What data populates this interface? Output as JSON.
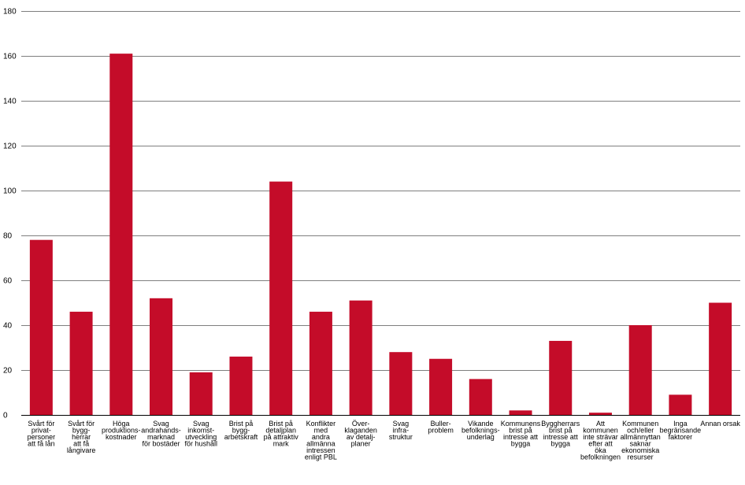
{
  "chart_data": {
    "type": "bar",
    "categories": [
      [
        "Svårt för",
        "privat-",
        "personer",
        "att få lån"
      ],
      [
        "Svårt för",
        "bygg-",
        "herrar",
        "att få",
        "långivare"
      ],
      [
        "Höga",
        "produktions-",
        "kostnader"
      ],
      [
        "Svag",
        "andrahands-",
        "marknad",
        "för bostäder"
      ],
      [
        "Svag",
        "inkomst-",
        "utveckling",
        "för hushåll"
      ],
      [
        "Brist på",
        "bygg-",
        "arbetskraft"
      ],
      [
        "Brist på",
        "detaljplan",
        "på attraktiv",
        "mark"
      ],
      [
        "Konflikter",
        "med",
        "andra",
        "allmänna",
        "intressen",
        "enligt PBL"
      ],
      [
        "Över-",
        "klaganden",
        "av detalj-",
        "planer"
      ],
      [
        "Svag",
        "infra-",
        "struktur"
      ],
      [
        "Buller-",
        "problem"
      ],
      [
        "Vikande",
        "befolknings-",
        "underlag"
      ],
      [
        "Kommunens",
        "brist på",
        "intresse att",
        "bygga"
      ],
      [
        "Byggherrars",
        "brist på",
        "intresse att",
        "bygga"
      ],
      [
        "Att",
        "kommunen",
        "inte strävar",
        "efter att",
        "öka",
        "befolkningen"
      ],
      [
        "Kommunen",
        "och/eller",
        "allmännyttan",
        "saknar",
        "ekonomiska",
        "resurser"
      ],
      [
        "Inga",
        "begränsande",
        "faktorer"
      ],
      [
        "Annan orsak"
      ]
    ],
    "values": [
      78,
      46,
      161,
      52,
      19,
      26,
      104,
      46,
      51,
      28,
      25,
      16,
      2,
      33,
      1,
      40,
      9,
      50
    ],
    "ylim": [
      0,
      180
    ],
    "yticks": [
      "0",
      "20",
      "40",
      "60",
      "80",
      "100",
      "120",
      "140",
      "160",
      "180"
    ],
    "grid": true,
    "legend": "none",
    "colors": {
      "bar": "#C40C29",
      "grid": "#7F7F7F",
      "axis": "#000000"
    }
  }
}
